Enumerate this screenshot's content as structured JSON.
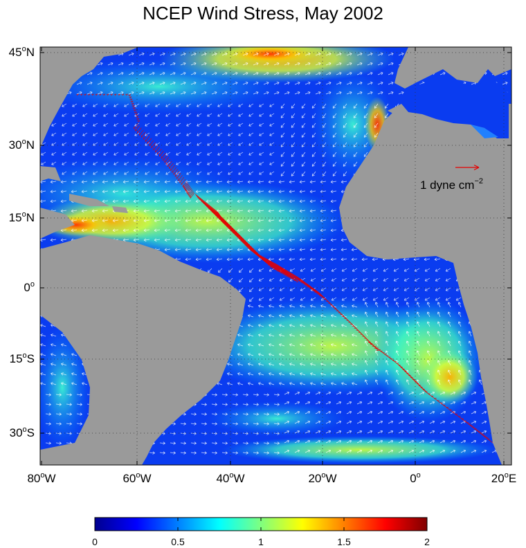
{
  "title": "NCEP Wind Stress, May 2002",
  "reference_vector": {
    "label_main": "1 dyne cm",
    "label_exp": "−2",
    "color": "#e60000"
  },
  "axes": {
    "y_ticks": [
      {
        "num": "45",
        "hemi": "N"
      },
      {
        "num": "30",
        "hemi": "N"
      },
      {
        "num": "15",
        "hemi": "N"
      },
      {
        "num": "0",
        "hemi": ""
      },
      {
        "num": "15",
        "hemi": "S"
      },
      {
        "num": "30",
        "hemi": "S"
      }
    ],
    "x_ticks": [
      {
        "num": "80",
        "hemi": "W"
      },
      {
        "num": "60",
        "hemi": "W"
      },
      {
        "num": "40",
        "hemi": "W"
      },
      {
        "num": "20",
        "hemi": "W"
      },
      {
        "num": "0",
        "hemi": ""
      },
      {
        "num": "20",
        "hemi": "E"
      }
    ],
    "grid": "dotted"
  },
  "colorbar": {
    "min": 0,
    "max": 2,
    "tick_labels": [
      "0",
      "0.5",
      "1",
      "1.5",
      "2"
    ],
    "colormap": "jet"
  },
  "colors": {
    "land": "#9a9a9a",
    "wind_vectors": "#ffffff",
    "track_vectors": "#e60000"
  }
}
